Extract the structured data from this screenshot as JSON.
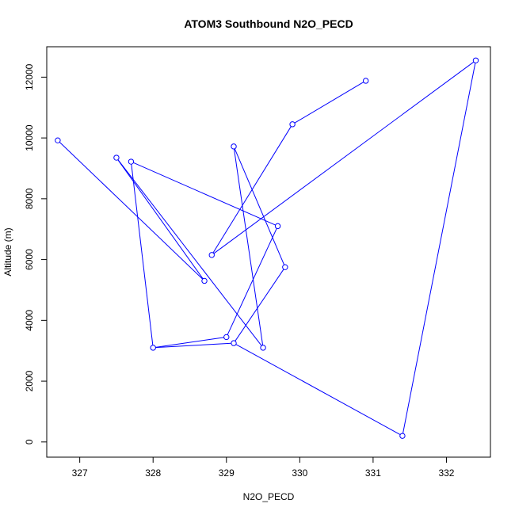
{
  "chart_data": {
    "type": "line",
    "title": "ATOM3 Southbound N2O_PECD",
    "xlabel": "N2O_PECD",
    "ylabel": "Altitude (m)",
    "xlim": [
      326.55,
      332.6
    ],
    "ylim": [
      -500,
      13000
    ],
    "x_ticks": [
      327,
      328,
      329,
      330,
      331,
      332
    ],
    "y_ticks": [
      0,
      2000,
      4000,
      6000,
      8000,
      10000,
      12000
    ],
    "grid": false,
    "legend": "none",
    "series": [
      {
        "color": "#0000ff",
        "marker": "open-circle",
        "points": [
          {
            "x": 331.4,
            "y": 200
          },
          {
            "x": 332.4,
            "y": 12550
          },
          {
            "x": 328.8,
            "y": 6150
          },
          {
            "x": 329.9,
            "y": 10450
          },
          {
            "x": 330.9,
            "y": 11880
          },
          null,
          {
            "x": 326.7,
            "y": 9920
          },
          {
            "x": 328.7,
            "y": 5300
          },
          {
            "x": 327.5,
            "y": 9350
          },
          {
            "x": 329.5,
            "y": 3100
          },
          {
            "x": 329.1,
            "y": 9720
          },
          {
            "x": 329.8,
            "y": 5750
          },
          {
            "x": 329.1,
            "y": 3250
          },
          null,
          {
            "x": 327.7,
            "y": 9220
          },
          {
            "x": 329.7,
            "y": 7100
          },
          {
            "x": 329.0,
            "y": 3450
          },
          {
            "x": 328.0,
            "y": 3100
          }
        ],
        "extra_segments": [
          [
            {
              "x": 328.0,
              "y": 3100
            },
            {
              "x": 327.7,
              "y": 9220
            }
          ],
          [
            {
              "x": 328.0,
              "y": 3100
            },
            {
              "x": 329.1,
              "y": 3250
            }
          ],
          [
            {
              "x": 329.1,
              "y": 3250
            },
            {
              "x": 331.4,
              "y": 200
            }
          ]
        ]
      }
    ]
  }
}
